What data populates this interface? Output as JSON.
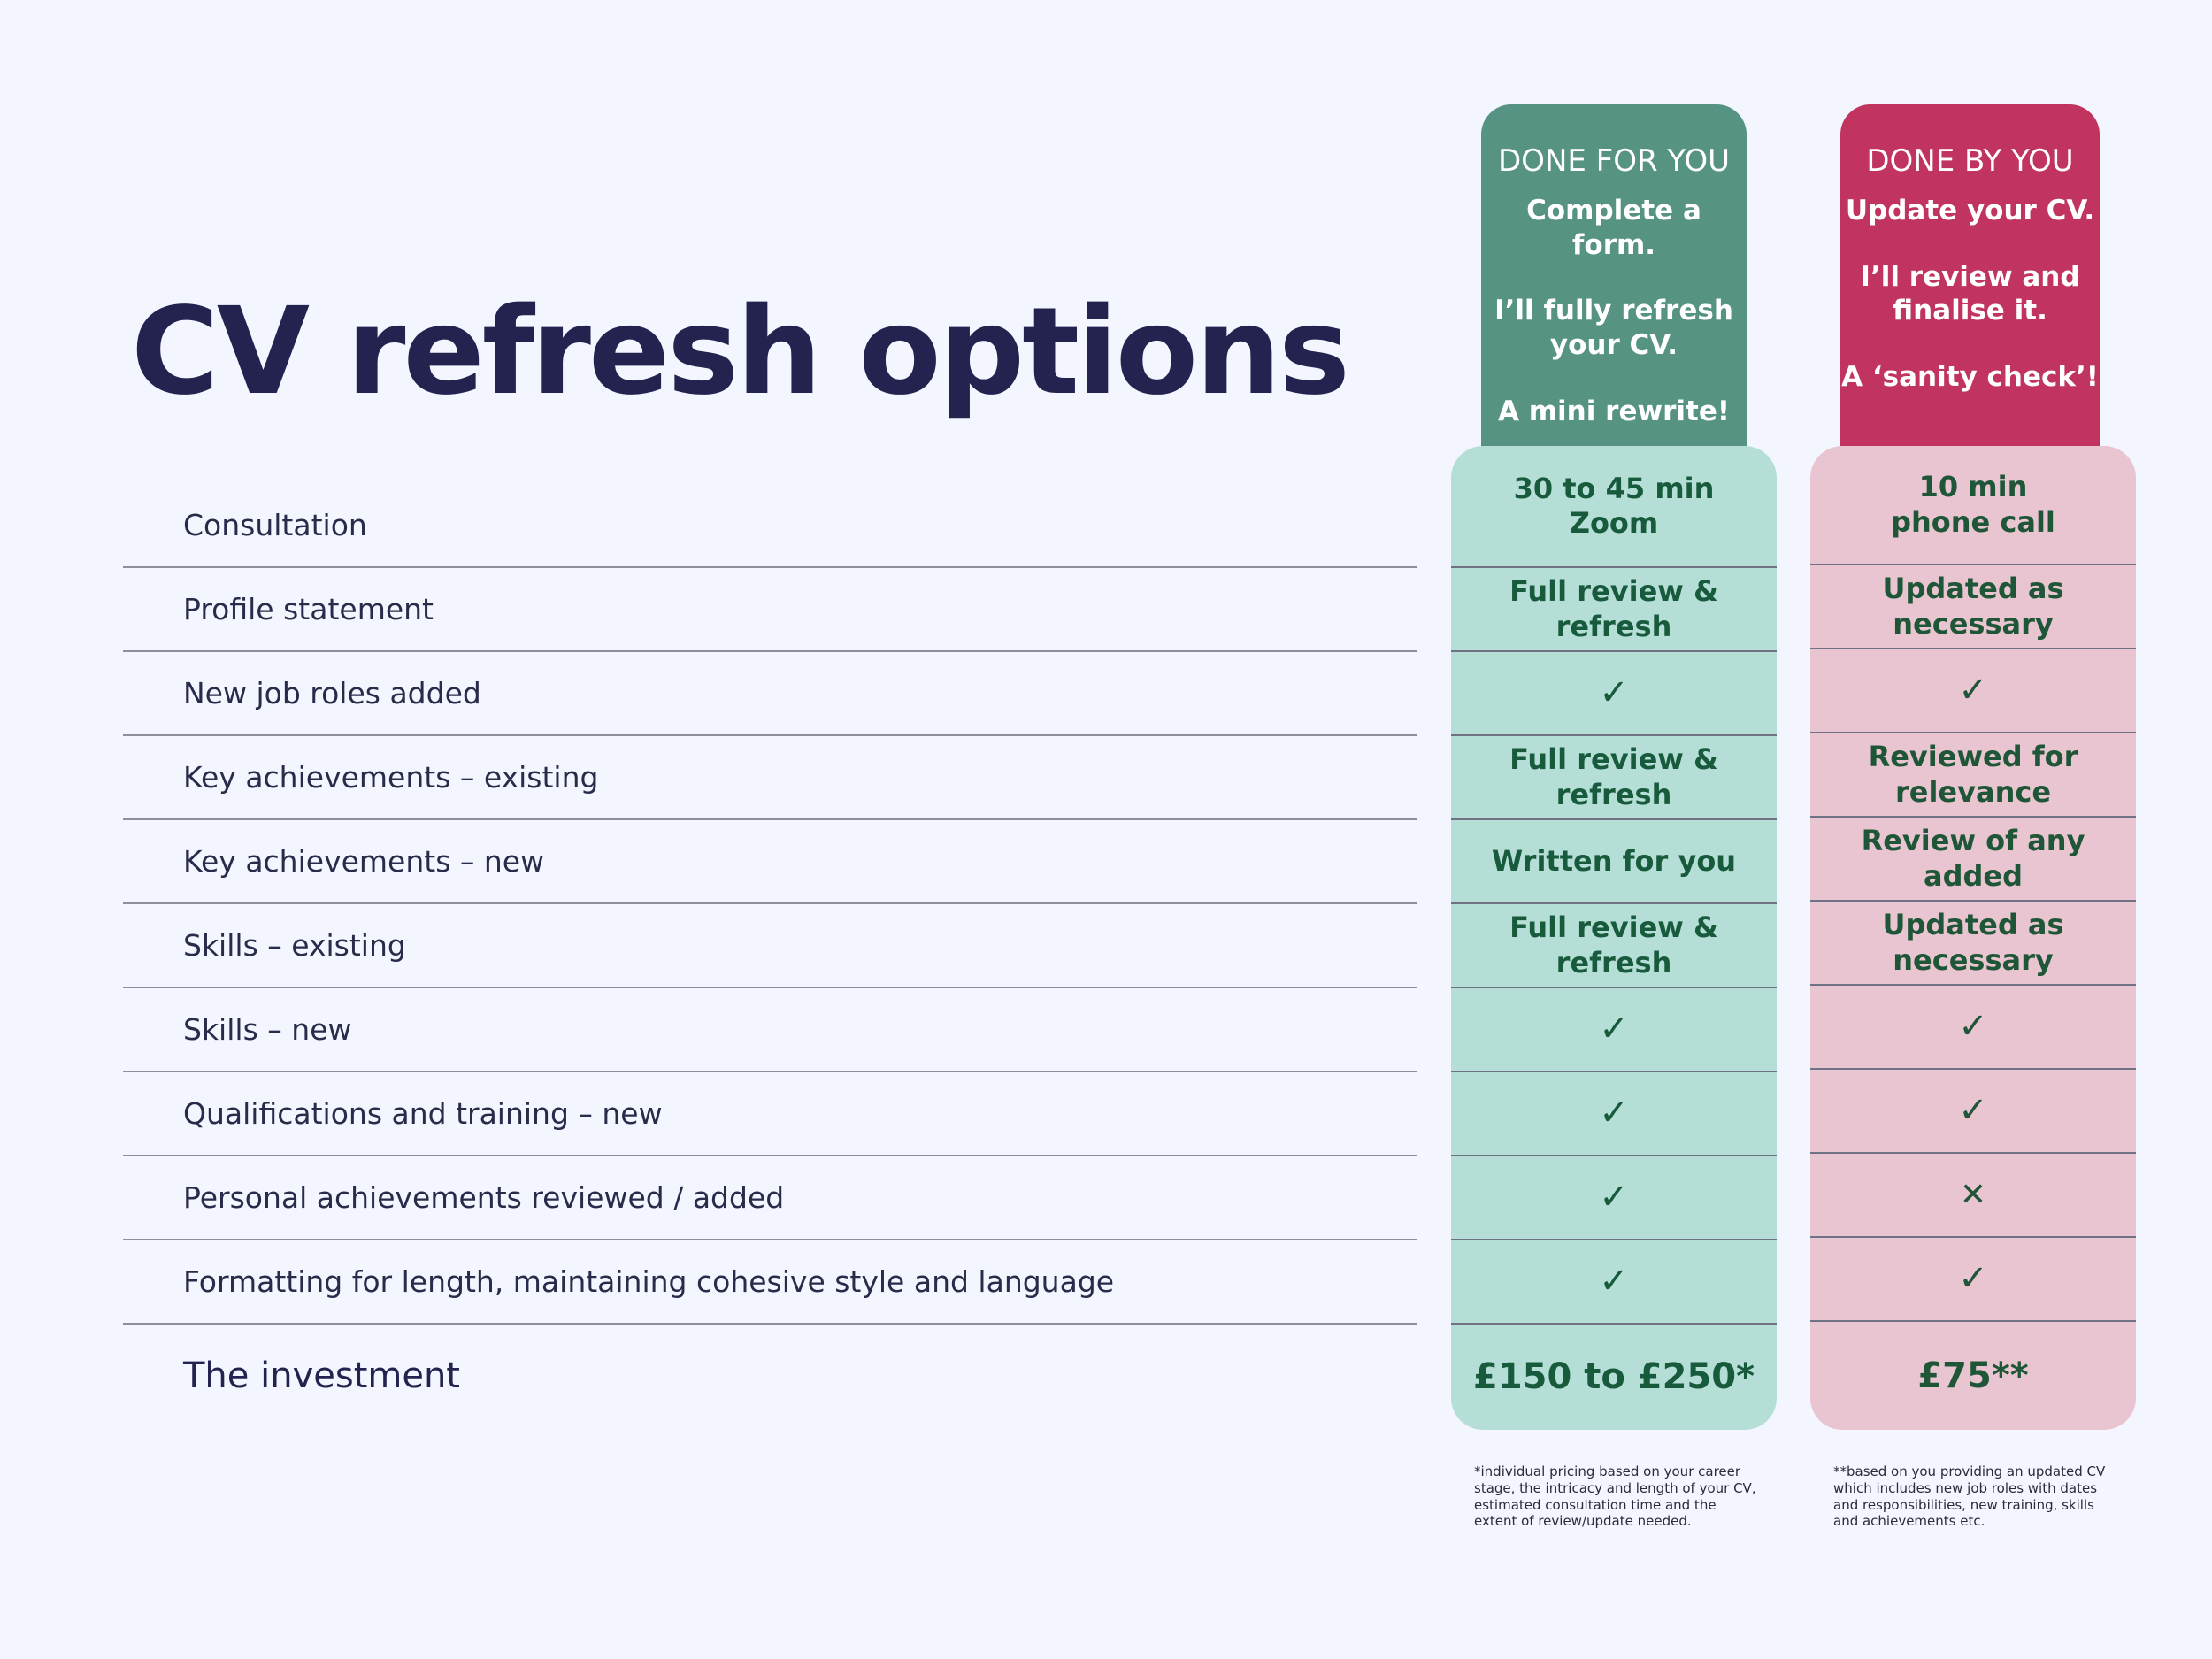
{
  "title": "CV refresh options",
  "rows": [
    "Consultation",
    "Profile statement",
    "New job roles added",
    "Key achievements – existing",
    "Key achievements – new",
    "Skills – existing",
    "Skills – new",
    "Qualifications and training – new",
    "Personal achievements reviewed / added",
    "Formatting for length, maintaining cohesive style and language"
  ],
  "investment_label": "The investment",
  "done_for_you": {
    "title": "DONE FOR YOU",
    "line1": "Complete a form.",
    "line2": "I’ll fully refresh\nyour CV.",
    "line3": "A mini rewrite!",
    "cells": [
      "30 to 45 min\nZoom",
      "Full review &\nrefresh",
      "✓",
      "Full review &\nrefresh",
      "Written for you",
      "Full review &\nrefresh",
      "✓",
      "✓",
      "✓",
      "✓"
    ],
    "price": "£150 to £250*",
    "footnote": "*individual pricing based on your career\nstage, the intricacy and length of your CV,\nestimated consultation time and the\nextent of review/update needed."
  },
  "done_by_you": {
    "title": "DONE BY YOU",
    "line1": "Update your CV.",
    "line2": "I’ll review and\nfinalise it.",
    "line3": "A ‘sanity check’!",
    "cells": [
      "10 min\nphone call",
      "Updated as\nnecessary",
      "✓",
      "Reviewed for\nrelevance",
      "Review of any\nadded",
      "Updated as\nnecessary",
      "✓",
      "✓",
      "✕",
      "✓"
    ],
    "price": "£75**",
    "footnote": "**based on you providing an updated CV\nwhich includes new job roles with dates\nand responsibilities, new training, skills\nand achievements etc."
  },
  "colors": {
    "background": "#f3f6fe",
    "title": "#24224f",
    "green_header": "#579383",
    "green_body": "#b5dfd6",
    "pink_header": "#c0345f",
    "pink_body": "#e8c5d0"
  }
}
